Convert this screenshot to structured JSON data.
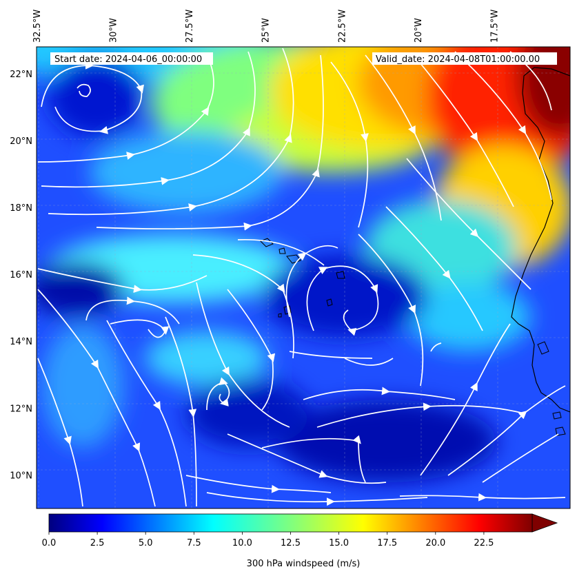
{
  "header": {
    "start_date": "Start date: 2024-04-06_00:00:00",
    "valid_date": "Valid_date: 2024-04-08T01:00:00.00"
  },
  "map": {
    "lon_range": [
      -32.5,
      -15.0
    ],
    "lat_range": [
      9.0,
      22.8
    ],
    "lon_ticks": [
      {
        "value": -32.5,
        "label": "32.5°W"
      },
      {
        "value": -30.0,
        "label": "30°W"
      },
      {
        "value": -27.5,
        "label": "27.5°W"
      },
      {
        "value": -25.0,
        "label": "25°W"
      },
      {
        "value": -22.5,
        "label": "22.5°W"
      },
      {
        "value": -20.0,
        "label": "20°W"
      },
      {
        "value": -17.5,
        "label": "17.5°W"
      }
    ],
    "lat_ticks": [
      {
        "value": 22,
        "label": "22°N"
      },
      {
        "value": 20,
        "label": "20°N"
      },
      {
        "value": 18,
        "label": "18°N"
      },
      {
        "value": 16,
        "label": "16°N"
      },
      {
        "value": 14,
        "label": "14°N"
      },
      {
        "value": 12,
        "label": "12°N"
      },
      {
        "value": 10,
        "label": "10°N"
      }
    ],
    "gridlines": true
  },
  "colorbar": {
    "label": "300 hPa windspeed (m/s)",
    "min": 0,
    "max": 25,
    "extend": "max",
    "colormap": "jet",
    "ticks": [
      {
        "value": 0,
        "label": "0.0"
      },
      {
        "value": 2.5,
        "label": "2.5"
      },
      {
        "value": 5,
        "label": "5.0"
      },
      {
        "value": 7.5,
        "label": "7.5"
      },
      {
        "value": 10,
        "label": "10.0"
      },
      {
        "value": 12.5,
        "label": "12.5"
      },
      {
        "value": 15,
        "label": "15.0"
      },
      {
        "value": 17.5,
        "label": "17.5"
      },
      {
        "value": 20,
        "label": "20.0"
      },
      {
        "value": 22.5,
        "label": "22.5"
      }
    ]
  },
  "colors": {
    "streamline": "#ffffff",
    "coastline": "#000000"
  }
}
